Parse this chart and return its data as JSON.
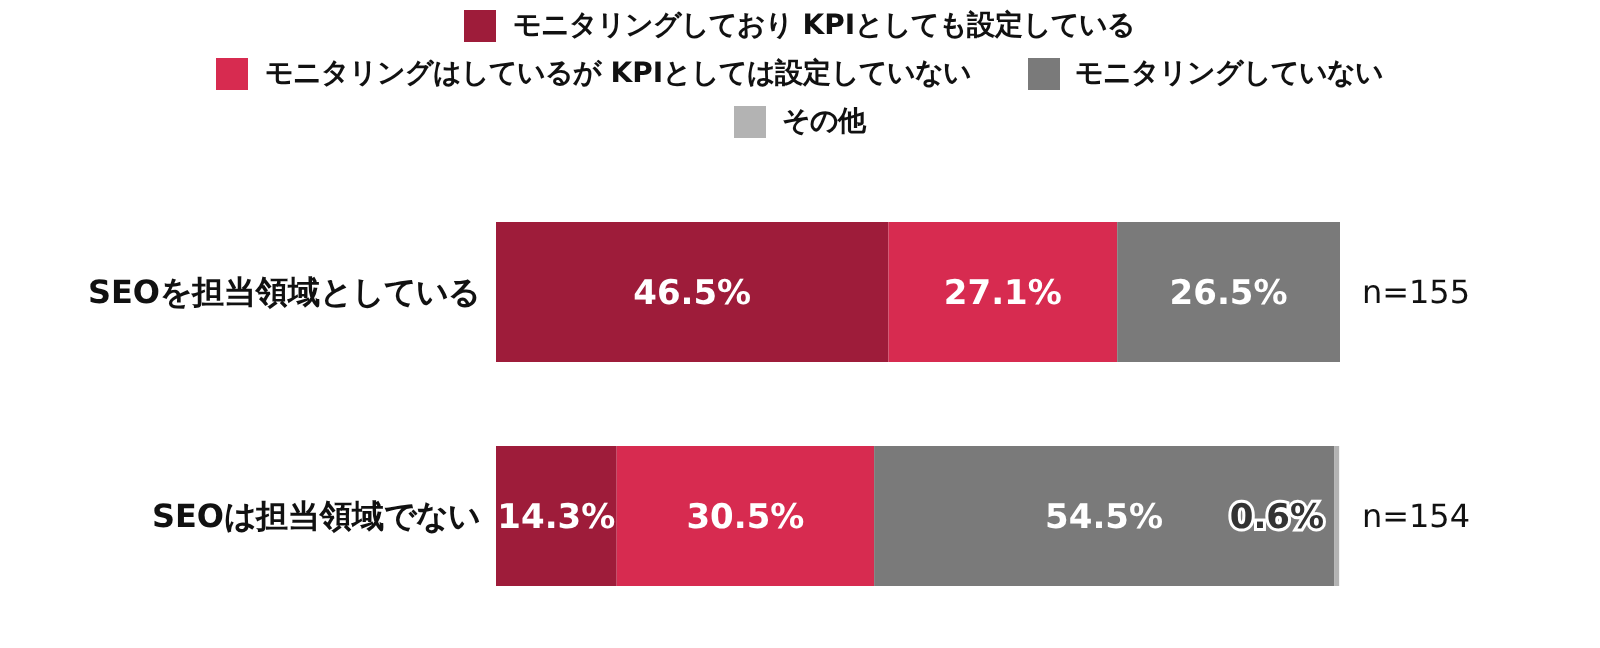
{
  "chart_data": {
    "type": "bar",
    "orientation": "horizontal",
    "stacked": true,
    "categories": [
      "SEOを担当領域としている",
      "SEOは担当領域でない"
    ],
    "series": [
      {
        "name": "モニタリングしており KPIとしても設定している",
        "color": "#9e1c3a",
        "values": [
          46.5,
          14.3
        ],
        "value_labels": [
          "46.5%",
          "14.3%"
        ]
      },
      {
        "name": "モニタリングはしているが KPIとしては設定していない",
        "color": "#d72b50",
        "values": [
          27.1,
          30.5
        ],
        "value_labels": [
          "27.1%",
          "30.5%"
        ]
      },
      {
        "name": "モニタリングしていない",
        "color": "#7a7a7a",
        "values": [
          26.5,
          54.5
        ],
        "value_labels": [
          "26.5%",
          "54.5%"
        ]
      },
      {
        "name": "その他",
        "color": "#b3b3b3",
        "values": [
          null,
          0.6
        ],
        "value_labels": [
          null,
          "0.6%"
        ]
      }
    ],
    "legend": "top",
    "tick_labels": "y",
    "grid": false,
    "annotations": [
      "n=155",
      "n=154"
    ]
  }
}
